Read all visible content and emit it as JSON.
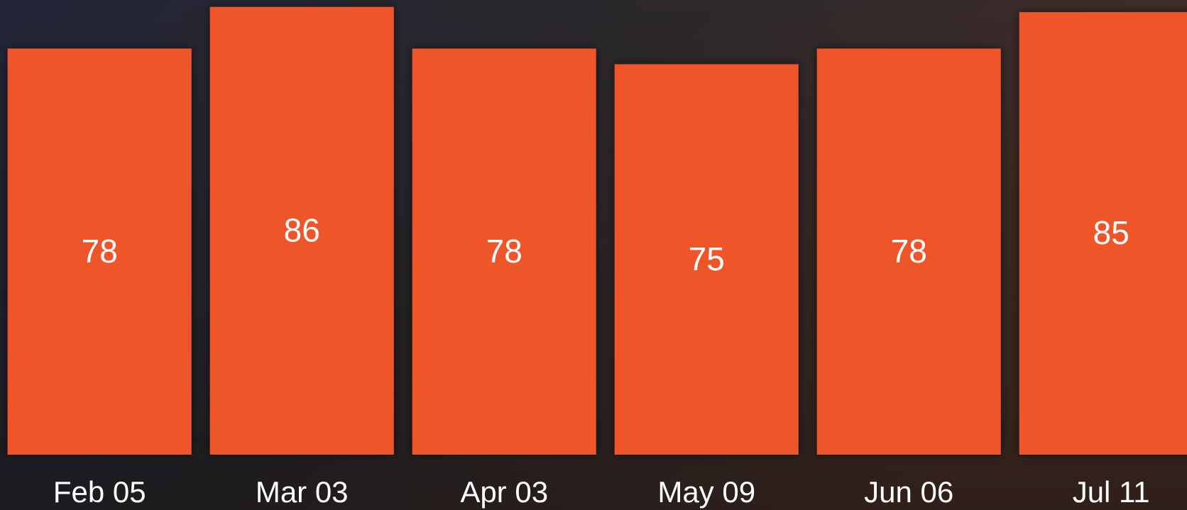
{
  "chart_data": {
    "type": "bar",
    "categories": [
      "Feb 05",
      "Mar 03",
      "Apr 03",
      "May 09",
      "Jun 06",
      "Jul 11"
    ],
    "values": [
      78,
      86,
      78,
      75,
      78,
      85
    ],
    "color": "#ee572b"
  }
}
